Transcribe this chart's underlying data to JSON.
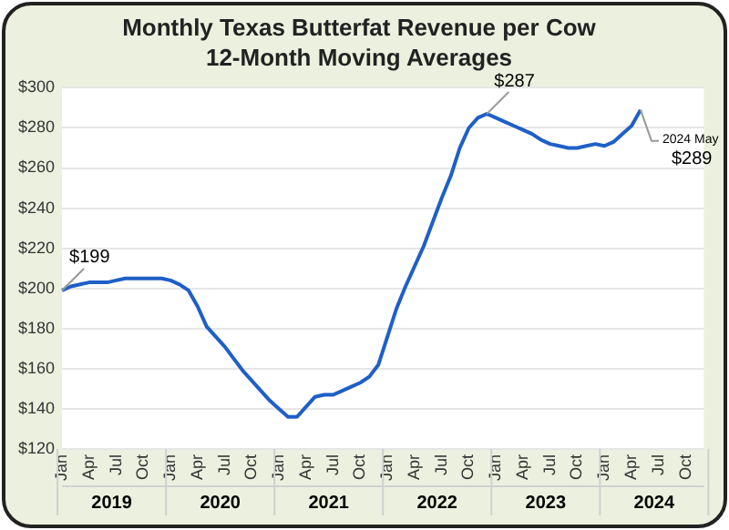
{
  "chart_data": {
    "type": "line",
    "title": "Monthly Texas Butterfat Revenue per Cow",
    "subtitle": "12-Month Moving Averages",
    "categories": [
      "Jan",
      null,
      null,
      "Apr",
      null,
      null,
      "Jul",
      null,
      null,
      "Oct",
      null,
      null,
      "Jan",
      null,
      null,
      "Apr",
      null,
      null,
      "Jul",
      null,
      null,
      "Oct",
      null,
      null,
      "Jan",
      null,
      null,
      "Apr",
      null,
      null,
      "Jul",
      null,
      null,
      "Oct",
      null,
      null,
      "Jan",
      null,
      null,
      "Apr",
      null,
      null,
      "Jul",
      null,
      null,
      "Oct",
      null,
      null,
      "Jan",
      null,
      null,
      "Apr",
      null,
      null,
      "Jul",
      null,
      null,
      "Oct",
      null,
      null,
      "Jan",
      null,
      null,
      "Apr",
      null,
      null,
      "Jul",
      null,
      null,
      "Oct",
      null,
      null
    ],
    "series": [
      {
        "color": "#1f5fc8",
        "values": [
          199,
          201,
          202,
          203,
          203,
          203,
          204,
          205,
          205,
          205,
          205,
          205,
          204,
          202,
          199,
          191,
          181,
          176,
          171,
          165,
          159,
          154,
          149,
          144,
          140,
          136,
          136,
          141,
          146,
          147,
          147,
          149,
          151,
          153,
          156,
          162,
          176,
          190,
          201,
          211,
          221,
          233,
          245,
          256,
          270,
          280,
          285,
          287,
          285,
          283,
          281,
          279,
          277,
          274,
          272,
          271,
          270,
          270,
          271,
          272,
          271,
          273,
          277,
          281,
          289,
          null,
          null,
          null,
          null,
          null,
          null,
          null
        ]
      }
    ],
    "ylim": [
      120,
      300
    ],
    "yticks": [
      {
        "value": 120,
        "label": "$120"
      },
      {
        "value": 140,
        "label": "$140"
      },
      {
        "value": 160,
        "label": "$160"
      },
      {
        "value": 180,
        "label": "$180"
      },
      {
        "value": 200,
        "label": "$200"
      },
      {
        "value": 220,
        "label": "$220"
      },
      {
        "value": 240,
        "label": "$240"
      },
      {
        "value": 260,
        "label": "$260"
      },
      {
        "value": 280,
        "label": "$280"
      },
      {
        "value": 300,
        "label": "$300"
      }
    ],
    "grid": "y",
    "legend": false,
    "marker": "none",
    "line_style": "solid",
    "annotations": [
      {
        "text": "$199",
        "y": 199
      },
      "$287",
      "2024 May",
      "$289",
      "2019",
      "2020",
      "2021",
      "2022",
      "2023",
      "2024"
    ]
  }
}
